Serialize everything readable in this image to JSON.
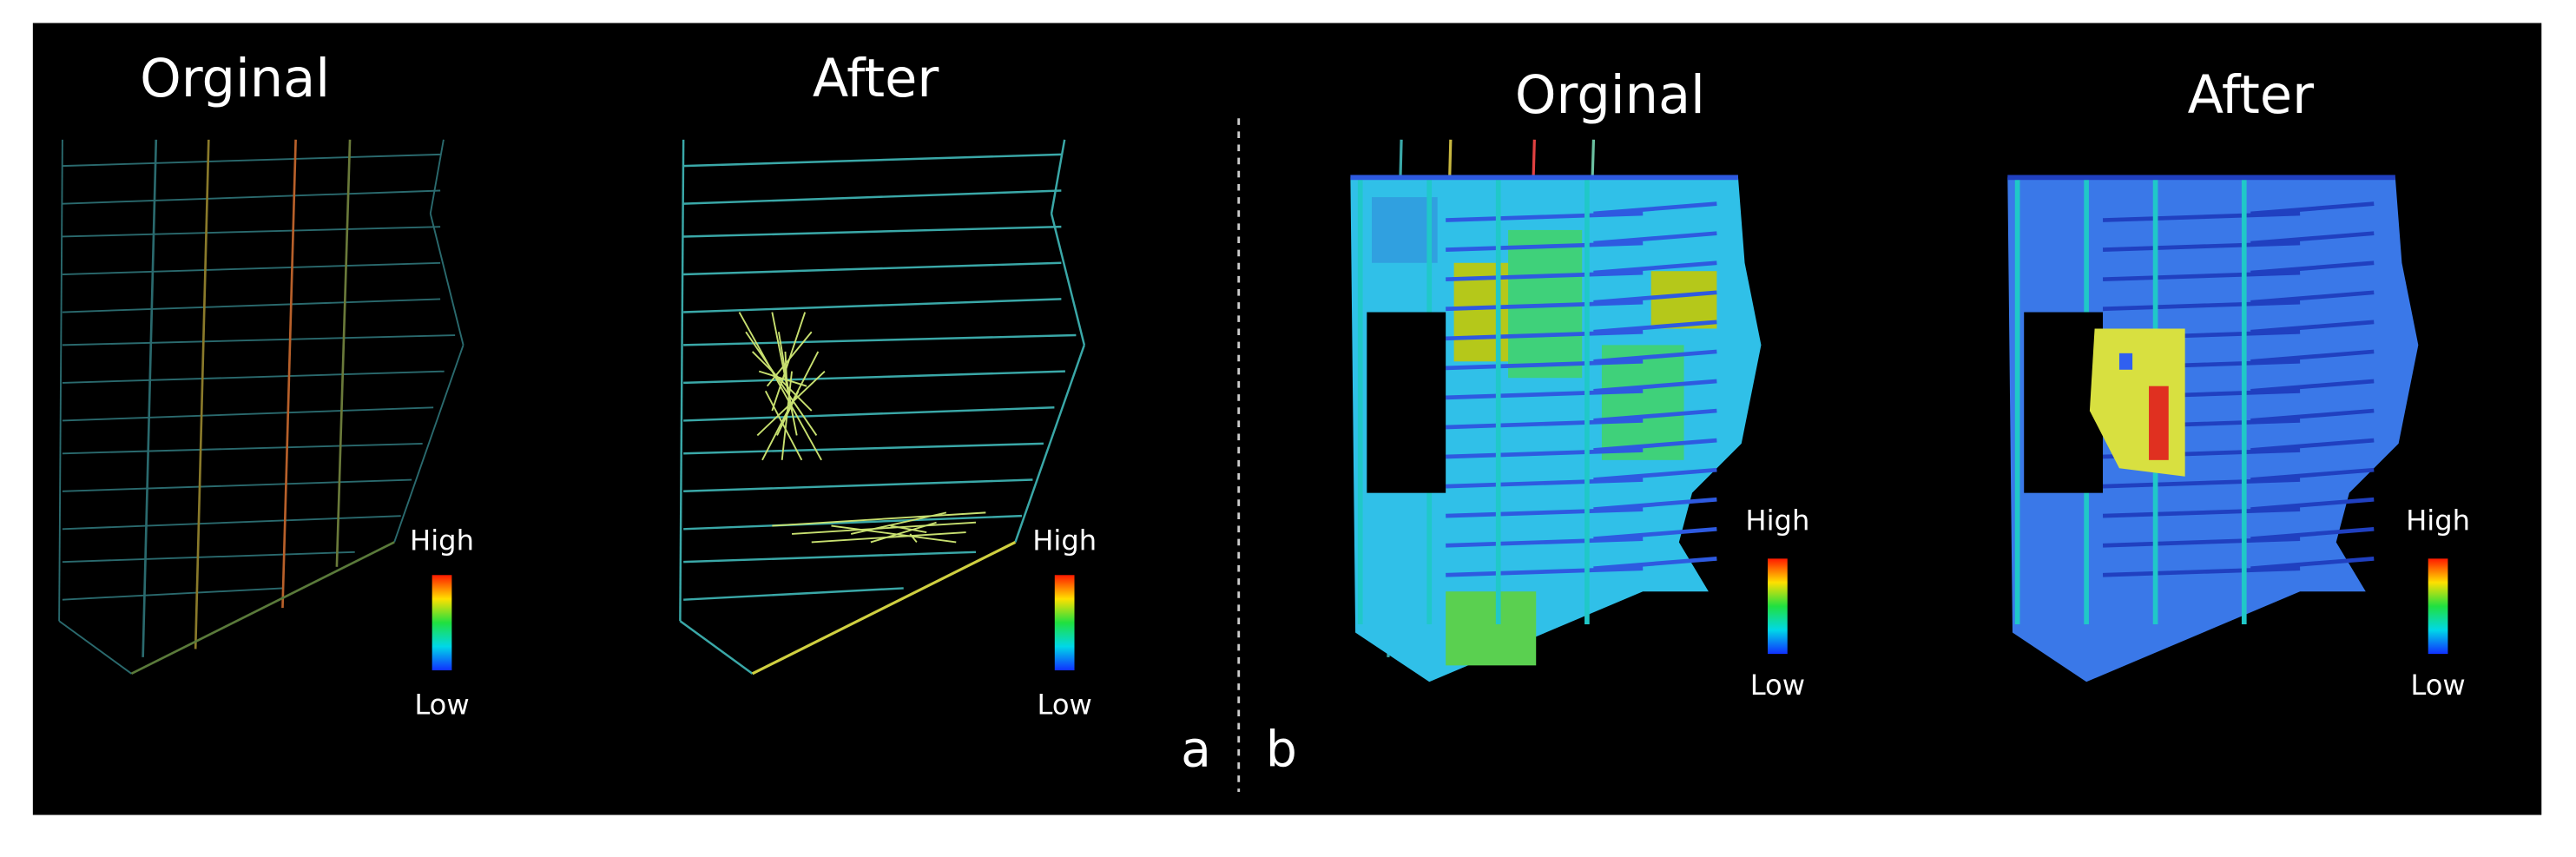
{
  "panel_a": {
    "label": "a",
    "maps": [
      {
        "title": "Orginal",
        "legend": {
          "high": "High",
          "low": "Low"
        }
      },
      {
        "title": "After",
        "legend": {
          "high": "High",
          "low": "Low"
        }
      }
    ]
  },
  "panel_b": {
    "label": "b",
    "maps": [
      {
        "title": "Orginal",
        "legend": {
          "high": "High",
          "low": "Low"
        }
      },
      {
        "title": "After",
        "legend": {
          "high": "High",
          "low": "Low"
        }
      }
    ]
  }
}
